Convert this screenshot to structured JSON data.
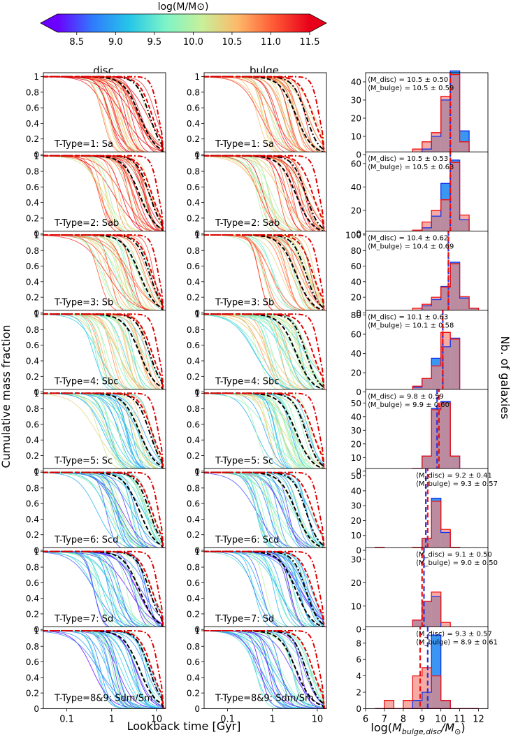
{
  "colorbar": {
    "label": "log(M/M⊙)",
    "ticks": [
      "8.5",
      "9.0",
      "9.5",
      "10.0",
      "10.5",
      "11.0",
      "11.5"
    ],
    "range": [
      8.25,
      11.5
    ],
    "extend": "both",
    "colors": [
      "#6a00ff",
      "#2f7dfc",
      "#26c6e8",
      "#7cf4c8",
      "#c7f09a",
      "#fdb96a",
      "#ff5a35",
      "#e8001a"
    ]
  },
  "column_titles": [
    "disc",
    "bulge"
  ],
  "xlabel": "Lookback time [Gyr]",
  "ylabel": "Cumulative mass fraction",
  "hist_xlabel": "log(M_bulge,disc/M⊙)",
  "hist_ylabel": "Nb. of galaxies",
  "curve_xticks": [
    "0.1",
    "1",
    "10"
  ],
  "curve_yticks": [
    "0",
    "0.2",
    "0.4",
    "0.6",
    "0.8",
    "1"
  ],
  "hist_xticks": [
    "6",
    "7",
    "8",
    "9",
    "10",
    "11",
    "12"
  ],
  "chart_data": [
    {
      "type": "line",
      "xscale": "log",
      "xlim": [
        0.03,
        16
      ],
      "ylim": [
        0,
        1.05
      ],
      "panels": [
        {
          "label": "T-Type=1: Sa"
        },
        {
          "label": "T-Type=2: Sab"
        },
        {
          "label": "T-Type=3: Sb"
        },
        {
          "label": "T-Type=4: Sbc"
        },
        {
          "label": "T-Type=5: Sc"
        },
        {
          "label": "T-Type=6: Scd"
        },
        {
          "label": "T-Type=7: Sd"
        },
        {
          "label": "T-Type=8&9: Sdm/Sm"
        }
      ],
      "note": "Individual galaxy curves coloured by log stellar mass; black dashed/dash-dot = median curves; red dashed/dash-dot = reference curves."
    },
    {
      "type": "bar",
      "kind": "histogram",
      "bin_edges": [
        6.5,
        7.0,
        7.5,
        8.0,
        8.5,
        9.0,
        9.5,
        10.0,
        10.5,
        11.0,
        11.5,
        12.0
      ],
      "series_names": [
        "disc",
        "bulge"
      ],
      "series_colors": [
        "#3a96f0",
        "#f2877d"
      ],
      "panels": [
        {
          "ylim": [
            0,
            45
          ],
          "yticks": [
            "0",
            "10",
            "20",
            "30",
            "40"
          ],
          "disc": [
            0,
            0,
            0,
            0,
            1,
            3,
            10,
            30,
            46,
            13,
            0
          ],
          "bulge": [
            0,
            0,
            0,
            1,
            3,
            7,
            12,
            32,
            44,
            7,
            0
          ],
          "line_disc": 10.5,
          "line_bulge": 10.5,
          "ann": "left",
          "text_disc": "⟨M_disc⟩ = 10.5 ± 0.50",
          "text_bulge": "⟨M_bulge⟩ = 10.5 ± 0.59"
        },
        {
          "ylim": [
            0,
            70
          ],
          "yticks": [
            "0",
            "20",
            "40",
            "60"
          ],
          "disc": [
            0,
            0,
            0,
            1,
            2,
            5,
            15,
            43,
            63,
            12,
            0
          ],
          "bulge": [
            0,
            0,
            0,
            1,
            3,
            10,
            20,
            29,
            61,
            16,
            0
          ],
          "line_disc": 10.5,
          "line_bulge": 10.5,
          "ann": "left",
          "text_disc": "⟨M_disc⟩ = 10.5 ± 0.53",
          "text_bulge": "⟨M_bulge⟩ = 10.5 ± 0.63"
        },
        {
          "ylim": [
            0,
            105
          ],
          "yticks": [
            "0",
            "20",
            "40",
            "60",
            "80",
            "100"
          ],
          "disc": [
            0,
            0,
            0,
            2,
            3,
            9,
            17,
            34,
            65,
            19,
            6
          ],
          "bulge": [
            0,
            0,
            0,
            3,
            6,
            11,
            20,
            33,
            63,
            21,
            6
          ],
          "line_disc": 10.4,
          "line_bulge": 10.4,
          "ann": "left",
          "text_disc": "⟨M_disc⟩ = 10.4 ± 0.62",
          "text_bulge": "⟨M_bulge⟩ = 10.4 ± 0.69"
        },
        {
          "ylim": [
            0,
            85
          ],
          "yticks": [
            "0",
            "20",
            "40",
            "60",
            "80"
          ],
          "disc": [
            0,
            0,
            0,
            0,
            5,
            14,
            35,
            47,
            56,
            0,
            0
          ],
          "bulge": [
            0,
            0,
            0,
            0,
            6,
            14,
            27,
            62,
            55,
            0,
            0
          ],
          "line_disc": 10.1,
          "line_bulge": 10.1,
          "ann": "left",
          "text_disc": "⟨M_disc⟩ = 10.1 ± 0.63",
          "text_bulge": "⟨M_bulge⟩ = 10.1 ± 0.58"
        },
        {
          "ylim": [
            0,
            60
          ],
          "yticks": [
            "0",
            "10",
            "20",
            "30",
            "40",
            "50"
          ],
          "disc": [
            0,
            0,
            0,
            0,
            2,
            11,
            46,
            51,
            11,
            0,
            0
          ],
          "bulge": [
            0,
            0,
            0,
            0,
            2,
            11,
            45,
            50,
            11,
            0,
            0
          ],
          "line_disc": 9.8,
          "line_bulge": 9.9,
          "ann": "left",
          "text_disc": "⟨M_disc⟩ = 9.8 ± 0.59",
          "text_bulge": "⟨M_bulge⟩ = 9.9 ± 0.60"
        },
        {
          "ylim": [
            0,
            55
          ],
          "yticks": [
            "0",
            "10",
            "20",
            "30",
            "40",
            "50"
          ],
          "disc": [
            0,
            0,
            0,
            0,
            2,
            8,
            35,
            12,
            2,
            0,
            0
          ],
          "bulge": [
            2,
            0,
            0,
            0,
            2,
            8,
            33,
            14,
            2,
            0,
            0
          ],
          "line_disc": 9.2,
          "line_bulge": 9.3,
          "ann": "right",
          "text_disc": "⟨M_disc⟩ = 9.2 ± 0.41",
          "text_bulge": "⟨M_bulge⟩ = 9.3 ± 0.57"
        },
        {
          "ylim": [
            0,
            35
          ],
          "yticks": [
            "0",
            "10",
            "20",
            "30"
          ],
          "disc": [
            0,
            0,
            0,
            1,
            4,
            12,
            14,
            1,
            0,
            0,
            0
          ],
          "bulge": [
            0,
            0,
            0,
            0,
            4,
            12,
            16,
            3,
            1,
            0,
            0
          ],
          "line_disc": 9.1,
          "line_bulge": 9.0,
          "ann": "right",
          "text_disc": "⟨M_disc⟩ = 9.1 ± 0.50",
          "text_bulge": "⟨M_bulge⟩ = 9.0 ± 0.50"
        },
        {
          "ylim": [
            0,
            10
          ],
          "yticks": [
            "0",
            "2",
            "4",
            "6",
            "8"
          ],
          "disc": [
            0,
            0,
            0,
            0,
            1,
            2,
            9,
            1,
            0,
            0,
            0
          ],
          "bulge": [
            0,
            1,
            0,
            1,
            4,
            5,
            4,
            1,
            0,
            0,
            0
          ],
          "line_disc": 9.3,
          "line_bulge": 8.9,
          "ann": "right",
          "text_disc": "⟨M_disc⟩ = 9.3 ± 0.57",
          "text_bulge": "⟨M_bulge⟩ = 8.9 ± 0.61"
        }
      ]
    }
  ]
}
